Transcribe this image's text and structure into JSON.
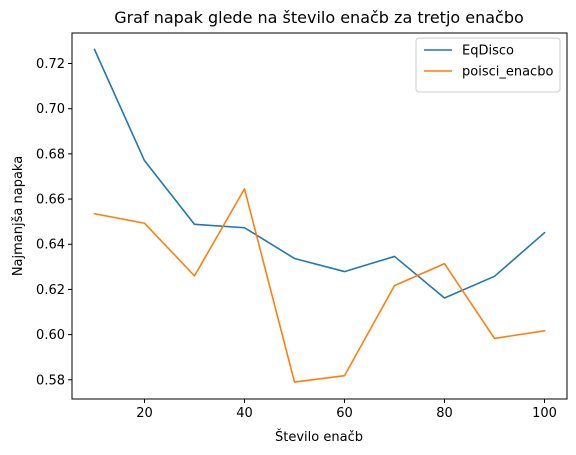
{
  "chart_data": {
    "type": "line",
    "title": "Graf napak glede na število enačb za tretjo enačbo",
    "xlabel": "Število enačb",
    "ylabel": "Najmanjša napaka",
    "x": [
      10,
      20,
      30,
      40,
      50,
      60,
      70,
      80,
      90,
      100
    ],
    "xlim": [
      5.5,
      104.5
    ],
    "ylim": [
      0.5715,
      0.7335
    ],
    "xticks": [
      20,
      40,
      60,
      80,
      100
    ],
    "yticks": [
      0.58,
      0.6,
      0.62,
      0.64,
      0.66,
      0.68,
      0.7,
      0.72
    ],
    "xtick_labels": [
      "20",
      "40",
      "60",
      "80",
      "100"
    ],
    "ytick_labels": [
      "0.58",
      "0.60",
      "0.62",
      "0.64",
      "0.66",
      "0.68",
      "0.70",
      "0.72"
    ],
    "grid": false,
    "legend_position": "top-right",
    "series": [
      {
        "name": "EqDisco",
        "color": "#1f77b4",
        "values": [
          0.7262,
          0.677,
          0.6488,
          0.6473,
          0.6337,
          0.6279,
          0.6346,
          0.6162,
          0.6258,
          0.6451
        ]
      },
      {
        "name": "poisci_enacbo",
        "color": "#ff7f0e",
        "values": [
          0.6535,
          0.6493,
          0.626,
          0.6645,
          0.579,
          0.5818,
          0.6217,
          0.6314,
          0.5983,
          0.6017
        ]
      }
    ]
  }
}
